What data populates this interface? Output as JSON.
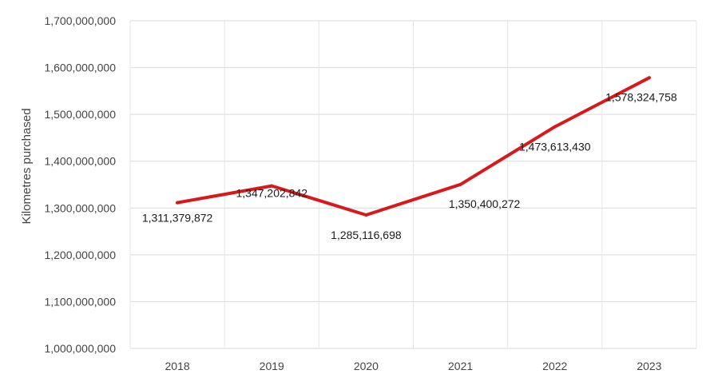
{
  "chart_data": {
    "type": "line",
    "title": "",
    "xlabel": "",
    "ylabel": "Kilometres purchased",
    "categories": [
      "2018",
      "2019",
      "2020",
      "2021",
      "2022",
      "2023"
    ],
    "series": [
      {
        "values": [
          1311379872,
          1347202842,
          1285116698,
          1350400272,
          1473613430,
          1578324758
        ],
        "data_labels": [
          "1,311,379,872",
          "1,347,202,842",
          "1,285,116,698",
          "1,350,400,272",
          "1,473,613,430",
          "1,578,324,758"
        ],
        "color": "#d7191c"
      }
    ],
    "ylim": [
      1000000000,
      1700000000
    ],
    "yticks": [
      1000000000,
      1100000000,
      1200000000,
      1300000000,
      1400000000,
      1500000000,
      1600000000,
      1700000000
    ],
    "ytick_labels": [
      "1,000,000,000",
      "1,100,000,000",
      "1,200,000,000",
      "1,300,000,000",
      "1,400,000,000",
      "1,500,000,000",
      "1,600,000,000",
      "1,700,000,000"
    ],
    "grid": true,
    "legend": "none"
  }
}
